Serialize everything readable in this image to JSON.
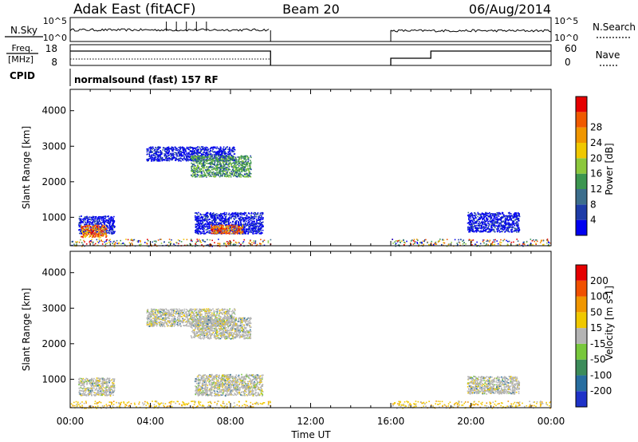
{
  "header": {
    "station": "Adak East (fitACF)",
    "beam": "Beam 20",
    "date": "06/Aug/2014"
  },
  "panels": {
    "nsky_label": "N.Sky",
    "nsearch_label": "N.Search",
    "noise_ticks": [
      "10^5",
      "10^0"
    ],
    "freq_label": "Freq.",
    "freq_unit": "[MHz]",
    "freq_ticks": [
      "18",
      "8"
    ],
    "nave_label": "Nave",
    "nave_ticks": [
      "60",
      "0"
    ],
    "cpid_label": "CPID",
    "cpid_text": "normalsound (fast) 157 RF"
  },
  "chart_data": [
    {
      "type": "heatmap",
      "name": "power-panel",
      "xlabel": "",
      "ylabel": "Slant Range [km]",
      "x_range_hours": [
        0,
        24
      ],
      "ylim": [
        200,
        4600
      ],
      "yticks": [
        "1000",
        "2000",
        "3000",
        "4000"
      ],
      "colorbar": {
        "label": "Power [dB]",
        "ticks": [
          "4",
          "8",
          "12",
          "16",
          "20",
          "24",
          "28"
        ],
        "colors": [
          "#0000f0",
          "#1e3ca8",
          "#3c6e8c",
          "#3c9650",
          "#8cc83c",
          "#f0c800",
          "#f09600",
          "#f05a00",
          "#e60000"
        ]
      },
      "echo_regions": [
        {
          "t": [
            0.4,
            2.2
          ],
          "r": [
            550,
            1050
          ],
          "level": "low"
        },
        {
          "t": [
            0.5,
            1.8
          ],
          "r": [
            450,
            800
          ],
          "level": "high"
        },
        {
          "t": [
            3.8,
            8.2
          ],
          "r": [
            2600,
            3000
          ],
          "level": "low"
        },
        {
          "t": [
            6.0,
            9.0
          ],
          "r": [
            2150,
            2750
          ],
          "level": "mid"
        },
        {
          "t": [
            6.2,
            9.6
          ],
          "r": [
            550,
            1150
          ],
          "level": "low"
        },
        {
          "t": [
            7.0,
            8.6
          ],
          "r": [
            550,
            800
          ],
          "level": "high"
        },
        {
          "t": [
            19.8,
            22.4
          ],
          "r": [
            600,
            1150
          ],
          "level": "low"
        },
        {
          "t": [
            0.0,
            10.0
          ],
          "r": [
            200,
            400
          ],
          "level": "sparse"
        },
        {
          "t": [
            16.0,
            24.0
          ],
          "r": [
            200,
            400
          ],
          "level": "sparse"
        }
      ]
    },
    {
      "type": "heatmap",
      "name": "velocity-panel",
      "xlabel": "Time UT",
      "ylabel": "Slant Range [km]",
      "x_range_hours": [
        0,
        24
      ],
      "xticks": [
        "00:00",
        "04:00",
        "08:00",
        "12:00",
        "16:00",
        "20:00",
        "00:00"
      ],
      "ylim": [
        200,
        4600
      ],
      "yticks": [
        "1000",
        "2000",
        "3000",
        "4000"
      ],
      "colorbar": {
        "label": "Velocity [m s-1]",
        "ticks": [
          "200",
          "100",
          "50",
          "15",
          "-15",
          "-50",
          "-100",
          "-200"
        ],
        "colors": [
          "#1e32c8",
          "#286ea0",
          "#3c8c5a",
          "#78c83c",
          "#b4b4b4",
          "#f0c800",
          "#f09600",
          "#f05000",
          "#e60000"
        ]
      },
      "echo_regions": [
        {
          "t": [
            0.4,
            2.2
          ],
          "r": [
            550,
            1050
          ],
          "level": "ground"
        },
        {
          "t": [
            3.8,
            8.2
          ],
          "r": [
            2500,
            3000
          ],
          "level": "ground"
        },
        {
          "t": [
            6.0,
            9.0
          ],
          "r": [
            2150,
            2750
          ],
          "level": "ground"
        },
        {
          "t": [
            6.2,
            9.6
          ],
          "r": [
            550,
            1150
          ],
          "level": "ground"
        },
        {
          "t": [
            19.8,
            22.4
          ],
          "r": [
            600,
            1100
          ],
          "level": "ground"
        },
        {
          "t": [
            0.0,
            10.0
          ],
          "r": [
            200,
            400
          ],
          "level": "sparse"
        },
        {
          "t": [
            16.0,
            24.0
          ],
          "r": [
            200,
            400
          ],
          "level": "sparse"
        }
      ]
    }
  ]
}
